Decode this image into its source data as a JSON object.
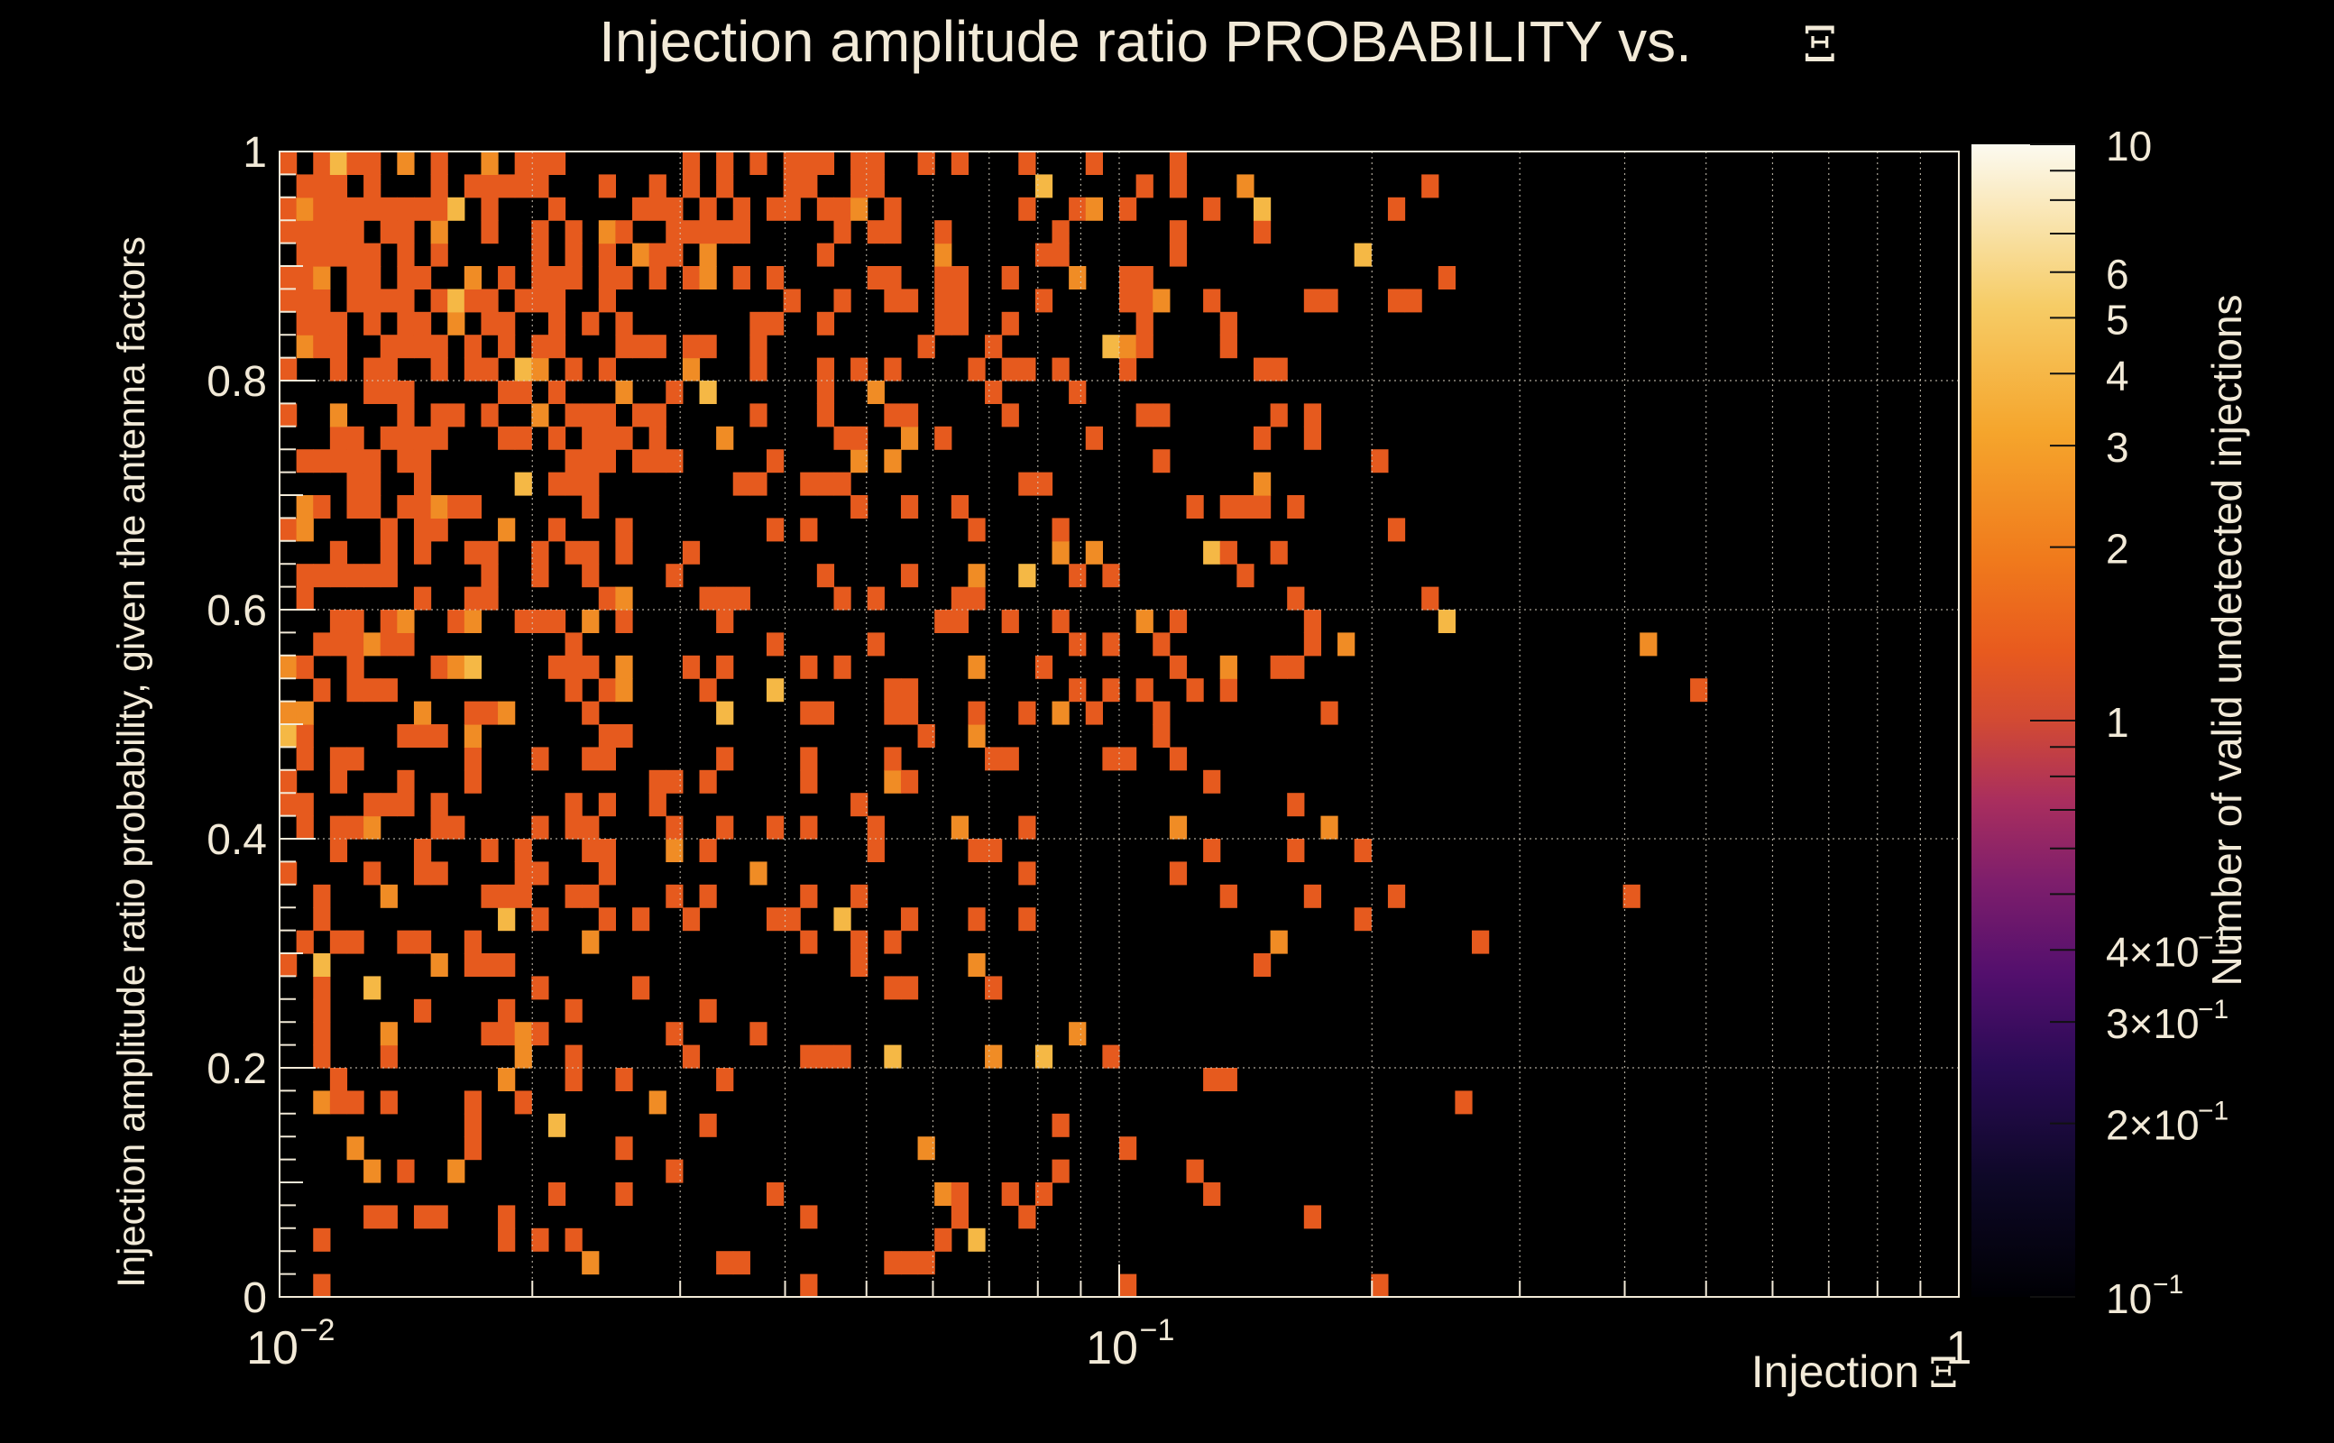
{
  "chart_data": {
    "type": "heatmap",
    "title": "Injection amplitude ratio PROBABILITY vs.",
    "title_symbol": "Ξ",
    "xlabel": "Injection",
    "xlabel_symbol": "Ξ",
    "ylabel": "Injection amplitude ratio probability, given the antenna factors",
    "zlabel": "Number of valid undetected injections",
    "x_scale": "log",
    "y_scale": "linear",
    "z_scale": "log",
    "xlim": [
      0.01,
      1
    ],
    "ylim": [
      0,
      1
    ],
    "zlim": [
      0.1,
      10
    ],
    "grid": true,
    "colorbar": "right",
    "x_major_ticks": [
      {
        "base": "10",
        "exp": "−2"
      },
      {
        "base": "10",
        "exp": "−1"
      },
      {
        "base": "1",
        "exp": ""
      }
    ],
    "y_ticks": [
      "0",
      "0.2",
      "0.4",
      "0.6",
      "0.8",
      "1"
    ],
    "z_ticks": [
      {
        "label": "10",
        "value": 10
      },
      {
        "label": "6",
        "value": 6
      },
      {
        "label": "5",
        "value": 5
      },
      {
        "label": "4",
        "value": 4
      },
      {
        "label": "3",
        "value": 3
      },
      {
        "label": "2",
        "value": 2
      },
      {
        "label": "1",
        "value": 1
      },
      {
        "label": "4×10",
        "exp": "−1",
        "value": 0.4
      },
      {
        "label": "3×10",
        "exp": "−1",
        "value": 0.3
      },
      {
        "label": "2×10",
        "exp": "−1",
        "value": 0.2
      },
      {
        "label": "10",
        "exp": "−1",
        "value": 0.1
      }
    ],
    "palette": [
      "#000004",
      "#1c0c42",
      "#4b0c6b",
      "#781c6d",
      "#a52c60",
      "#cf4446",
      "#e85a1e",
      "#ed6925",
      "#f48e1e",
      "#f8b73a",
      "#f5db90",
      "#fcfcf0"
    ],
    "bins": {
      "nx": 100,
      "ny": 50,
      "density": "upper-left heavy, sparse toward large Ξ and low probability",
      "counts": [
        1,
        2,
        3
      ]
    }
  }
}
